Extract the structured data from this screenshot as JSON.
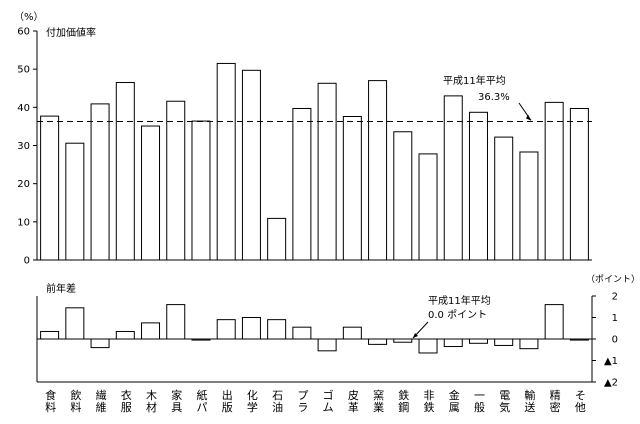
{
  "chart_data": [
    {
      "type": "bar",
      "title": "付加価値率",
      "ylabel": "（%）",
      "ylim": [
        0,
        60
      ],
      "yticks": [
        0,
        10,
        20,
        30,
        40,
        50,
        60
      ],
      "categories": [
        [
          "食",
          "料"
        ],
        [
          "飲",
          "料"
        ],
        [
          "繊",
          "維"
        ],
        [
          "衣",
          "服"
        ],
        [
          "木",
          "材"
        ],
        [
          "家",
          "具"
        ],
        [
          "紙",
          "パ"
        ],
        [
          "出",
          "版"
        ],
        [
          "化",
          "学"
        ],
        [
          "石",
          "油"
        ],
        [
          "プ",
          "ラ"
        ],
        [
          "ゴ",
          "ム"
        ],
        [
          "皮",
          "革"
        ],
        [
          "窯",
          "業"
        ],
        [
          "鉄",
          "鋼"
        ],
        [
          "非",
          "鉄"
        ],
        [
          "金",
          "属"
        ],
        [
          "一",
          "般"
        ],
        [
          "電",
          "気"
        ],
        [
          "輸",
          "送"
        ],
        [
          "精",
          "密"
        ],
        [
          "そ",
          "他"
        ]
      ],
      "values": [
        37.7,
        30.6,
        40.9,
        46.5,
        35.1,
        41.6,
        36.4,
        51.5,
        49.7,
        10.9,
        39.7,
        46.3,
        37.6,
        47.0,
        33.6,
        27.8,
        43.0,
        38.7,
        32.2,
        28.3,
        41.3,
        39.7
      ],
      "reference": {
        "value": 36.3,
        "label": "平成11年平均",
        "value_label": "36.3%"
      },
      "grid": false
    },
    {
      "type": "bar",
      "title": "前年差",
      "ylabel": "（ポイント）",
      "ylim": [
        -2,
        2
      ],
      "yticks": [
        {
          "value": 2,
          "label": "2"
        },
        {
          "value": 1,
          "label": "1"
        },
        {
          "value": 0,
          "label": "0"
        },
        {
          "value": -1,
          "label": "▲1"
        },
        {
          "value": -2,
          "label": "▲2"
        }
      ],
      "values": [
        0.35,
        1.45,
        -0.4,
        0.35,
        0.75,
        1.6,
        -0.05,
        0.9,
        1.0,
        0.9,
        0.55,
        -0.55,
        0.55,
        -0.25,
        -0.15,
        -0.65,
        -0.35,
        -0.2,
        -0.3,
        -0.45,
        1.6,
        -0.05
      ],
      "reference": {
        "value": 0.0,
        "label": "平成11年平均",
        "value_label": "0.0 ポイント"
      },
      "grid": false
    }
  ]
}
